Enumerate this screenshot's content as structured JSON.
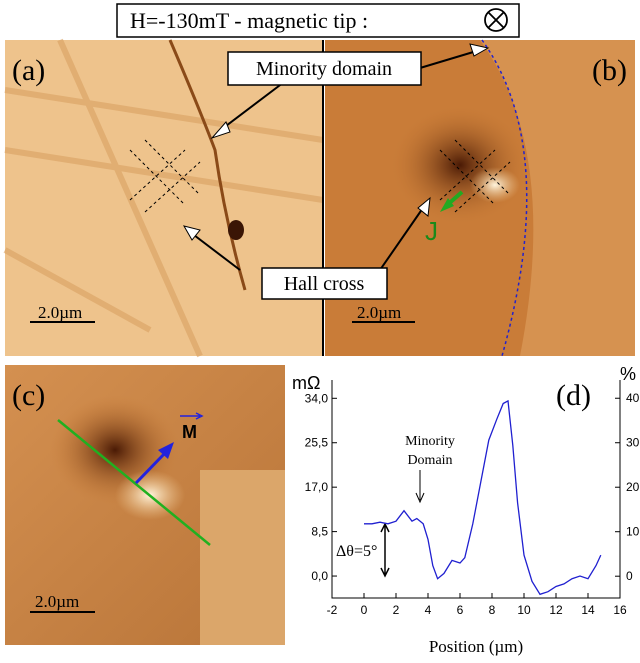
{
  "figure": {
    "title": "H=-130mT - magnetic tip :",
    "panels": [
      {
        "label": "(a)",
        "scale_bar": "2.0µm"
      },
      {
        "label": "(b)",
        "scale_bar": "2.0µm"
      },
      {
        "label": "(c)",
        "scale_bar": "2.0µm"
      }
    ],
    "callouts": [
      "Minority domain",
      "Hall cross"
    ],
    "vector_labels": [
      "J",
      "M"
    ]
  },
  "chart_data": {
    "type": "line",
    "panel_label": "(d)",
    "xlabel": "Position (µm)",
    "ylabel": "mΩ",
    "y2label": "%",
    "annotation_lines": [
      "Minority",
      "Domain"
    ],
    "delta_label": "Δθ=5°",
    "x": [
      0,
      0.5,
      1,
      1.5,
      2,
      2.5,
      3,
      3.3,
      3.7,
      4,
      4.3,
      4.6,
      5,
      5.5,
      6,
      6.3,
      6.8,
      7.3,
      7.8,
      8.3,
      8.7,
      9,
      9.3,
      9.6,
      10,
      10.5,
      11,
      11.5,
      12,
      12.5,
      13,
      13.5,
      14,
      14.5,
      14.8
    ],
    "series": [
      {
        "color": "#2020d0",
        "values": [
          10,
          10,
          10.3,
          10,
          10.5,
          12.5,
          10.5,
          11,
          10,
          7,
          2,
          -0.5,
          0.5,
          3,
          2.5,
          3.5,
          10,
          18,
          26,
          30,
          33,
          33.5,
          25,
          14,
          4,
          -1,
          -3.5,
          -3,
          -2,
          -1.5,
          -0.5,
          0,
          -0.5,
          2,
          4
        ]
      }
    ],
    "xlim": [
      -2,
      16
    ],
    "xticks": [
      -2,
      0,
      2,
      4,
      6,
      8,
      10,
      12,
      14,
      16
    ],
    "ylim": [
      -4.2,
      37.5
    ],
    "yticks": [
      {
        "value": 0,
        "label": "0,0"
      },
      {
        "value": 8.5,
        "label": "8,5"
      },
      {
        "value": 17,
        "label": "17,0"
      },
      {
        "value": 25.5,
        "label": "25,5"
      },
      {
        "value": 34,
        "label": "34,0"
      }
    ],
    "y2lim": [
      -4.9,
      44.1
    ],
    "y2ticks": [
      0,
      10,
      20,
      30,
      40
    ]
  }
}
